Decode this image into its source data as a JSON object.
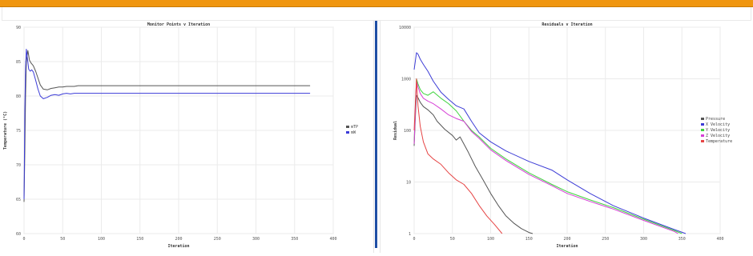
{
  "colors": {
    "accent_bar": "#f0960f",
    "divider": "#1f4fa5"
  },
  "chart_data": [
    {
      "type": "line",
      "title": "Monitor Points v Iteration",
      "xlabel": "Iteration",
      "ylabel": "Temperature (°C)",
      "xlim": [
        0,
        400
      ],
      "ylim": [
        60,
        90
      ],
      "xticks": [
        0,
        50,
        100,
        150,
        200,
        250,
        300,
        350,
        400
      ],
      "yticks": [
        60,
        65,
        70,
        75,
        80,
        85,
        90
      ],
      "grid": true,
      "legend": "right",
      "series": [
        {
          "name": "mTP",
          "color": "#555555",
          "x": [
            0,
            1,
            2,
            3,
            5,
            7,
            9,
            12,
            15,
            18,
            21,
            25,
            30,
            35,
            40,
            45,
            50,
            55,
            60,
            65,
            70,
            80,
            100,
            150,
            200,
            250,
            300,
            350,
            370
          ],
          "y": [
            64.6,
            72,
            80,
            85,
            86.6,
            85.2,
            84.8,
            84.4,
            83.6,
            82.6,
            81.6,
            81,
            80.9,
            81.1,
            81.2,
            81.3,
            81.3,
            81.4,
            81.4,
            81.4,
            81.5,
            81.5,
            81.5,
            81.5,
            81.5,
            81.5,
            81.5,
            81.5,
            81.5
          ]
        },
        {
          "name": "mW",
          "color": "#3b3bd8",
          "x": [
            0,
            1,
            2,
            3,
            4,
            6,
            8,
            10,
            12,
            15,
            18,
            21,
            25,
            30,
            35,
            40,
            45,
            50,
            55,
            60,
            65,
            70,
            80,
            100,
            150,
            200,
            250,
            300,
            350,
            370
          ],
          "y": [
            65,
            78,
            84,
            86.8,
            85.8,
            83.9,
            83.6,
            83.8,
            83.5,
            82.3,
            81,
            80,
            79.6,
            79.8,
            80.1,
            80.2,
            80.1,
            80.3,
            80.4,
            80.3,
            80.4,
            80.4,
            80.4,
            80.4,
            80.4,
            80.4,
            80.4,
            80.4,
            80.4,
            80.4
          ]
        }
      ]
    },
    {
      "type": "line",
      "title": "Residuals v Iteration",
      "xlabel": "Iteration",
      "ylabel": "Residual",
      "yscale": "log",
      "xlim": [
        0,
        400
      ],
      "ylim": [
        1,
        10000
      ],
      "xticks": [
        0,
        50,
        100,
        150,
        200,
        250,
        300,
        350,
        400
      ],
      "yticks": [
        1,
        10,
        100,
        1000,
        10000
      ],
      "grid": true,
      "legend": "right",
      "series": [
        {
          "name": "Pressure",
          "color": "#555555",
          "x": [
            0,
            2,
            3,
            5,
            8,
            12,
            18,
            25,
            30,
            40,
            50,
            55,
            60,
            70,
            80,
            90,
            100,
            110,
            120,
            130,
            140,
            150,
            155
          ],
          "y": [
            50,
            250,
            480,
            430,
            350,
            290,
            250,
            200,
            150,
            105,
            80,
            65,
            75,
            40,
            20,
            11,
            6,
            3.5,
            2.2,
            1.6,
            1.25,
            1.05,
            1.0
          ]
        },
        {
          "name": "X Velocity",
          "color": "#3c3cd6",
          "x": [
            0,
            3,
            5,
            8,
            12,
            18,
            25,
            35,
            45,
            55,
            65,
            75,
            85,
            100,
            120,
            150,
            180,
            200,
            230,
            260,
            300,
            340,
            355
          ],
          "y": [
            1500,
            3200,
            3000,
            2400,
            1900,
            1400,
            900,
            550,
            400,
            300,
            260,
            150,
            90,
            60,
            40,
            25,
            17,
            11,
            6,
            3.5,
            2,
            1.2,
            1.0
          ]
        },
        {
          "name": "Y Velocity",
          "color": "#3fd43f",
          "x": [
            0,
            3,
            5,
            8,
            12,
            18,
            25,
            35,
            45,
            55,
            65,
            75,
            85,
            100,
            120,
            150,
            180,
            200,
            230,
            260,
            300,
            340,
            350
          ],
          "y": [
            60,
            1000,
            800,
            620,
            520,
            480,
            560,
            420,
            330,
            240,
            150,
            100,
            75,
            45,
            28,
            15,
            9,
            6.5,
            4.5,
            3.2,
            1.9,
            1.15,
            1.0
          ]
        },
        {
          "name": "Z Velocity",
          "color": "#d63fd6",
          "x": [
            0,
            3,
            5,
            8,
            12,
            18,
            25,
            35,
            45,
            55,
            65,
            75,
            85,
            100,
            120,
            150,
            180,
            200,
            230,
            260,
            300,
            340,
            345
          ],
          "y": [
            55,
            900,
            700,
            520,
            420,
            370,
            330,
            260,
            200,
            170,
            150,
            95,
            70,
            42,
            26,
            14,
            8.5,
            6,
            4.2,
            3,
            1.8,
            1.1,
            1.0
          ]
        },
        {
          "name": "Temperature",
          "color": "#e64545",
          "x": [
            0,
            3,
            5,
            8,
            12,
            18,
            25,
            35,
            45,
            55,
            65,
            75,
            85,
            95,
            105,
            115
          ],
          "y": [
            100,
            1000,
            300,
            120,
            60,
            35,
            28,
            22,
            15,
            11,
            9,
            6,
            3.5,
            2.2,
            1.5,
            1.0
          ]
        }
      ]
    }
  ]
}
